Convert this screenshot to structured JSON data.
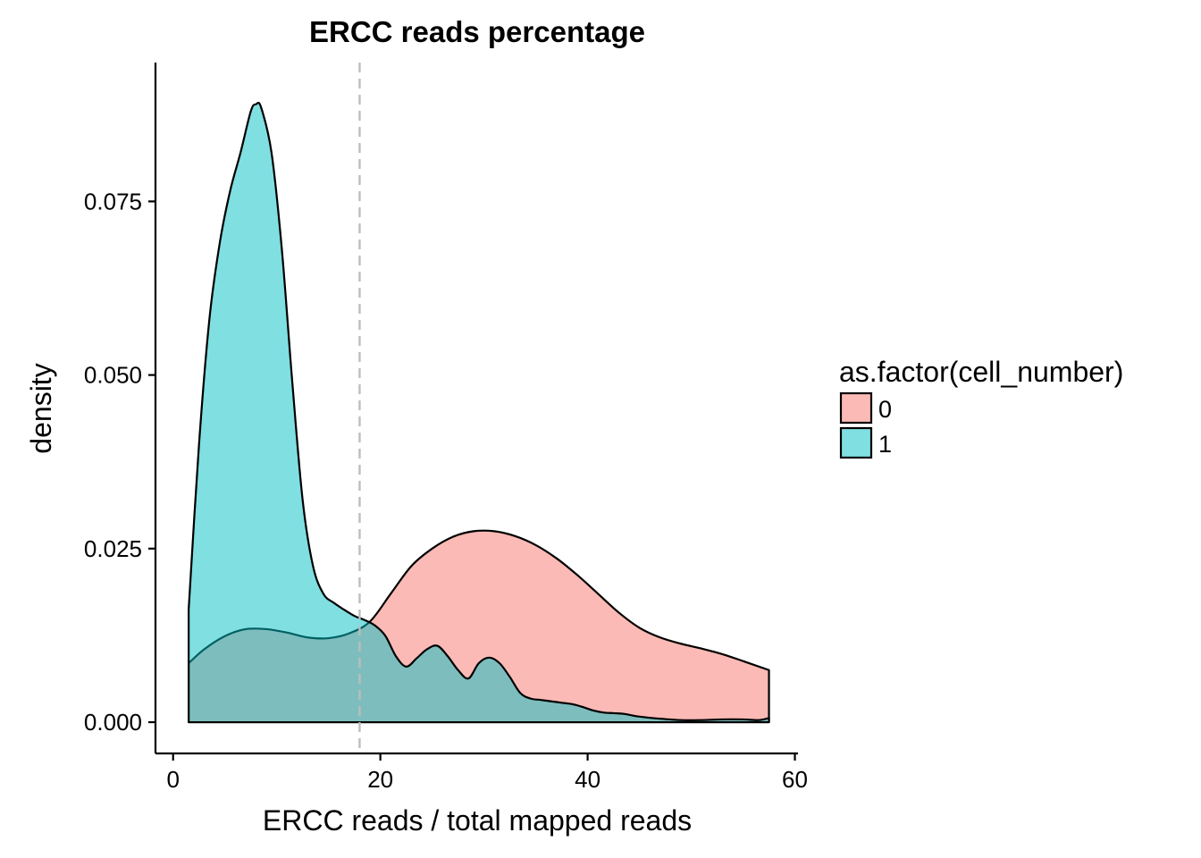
{
  "chart_data": {
    "type": "area",
    "subtype": "density",
    "title": "ERCC reads percentage",
    "xlabel": "ERCC reads / total mapped reads",
    "ylabel": "density",
    "xlim": [
      -1.7,
      60.3
    ],
    "ylim": [
      -0.0045,
      0.095
    ],
    "x_ticks": [
      0,
      20,
      40,
      60
    ],
    "y_ticks": [
      0.0,
      0.025,
      0.05,
      0.075
    ],
    "x_tick_labels": [
      "0",
      "20",
      "40",
      "60"
    ],
    "y_tick_labels": [
      "0.000",
      "0.025",
      "0.050",
      "0.075"
    ],
    "grid": false,
    "vline": {
      "x": 18,
      "style": "dashed",
      "color": "#bdbdbd"
    },
    "legend": {
      "title": "as.factor(cell_number)",
      "position": "right",
      "entries": [
        "0",
        "1"
      ]
    },
    "series": [
      {
        "name": "0",
        "color": "#F8766D",
        "x": [
          1.5,
          3,
          5,
          7,
          9,
          11,
          13,
          15,
          17,
          19,
          21,
          23,
          25,
          27,
          29,
          31,
          33,
          35,
          37,
          39,
          41,
          43,
          45,
          47,
          49,
          51,
          53,
          55,
          57.5
        ],
        "values": [
          0.0085,
          0.0105,
          0.0124,
          0.0134,
          0.0134,
          0.0129,
          0.0122,
          0.0121,
          0.0128,
          0.0145,
          0.0185,
          0.0225,
          0.025,
          0.0267,
          0.0275,
          0.0275,
          0.0268,
          0.0255,
          0.0236,
          0.0212,
          0.0185,
          0.0158,
          0.0136,
          0.0122,
          0.0113,
          0.0106,
          0.0098,
          0.0088,
          0.0075
        ]
      },
      {
        "name": "1",
        "color": "#00BFC4",
        "x": [
          1.5,
          2.5,
          3.5,
          4.5,
          5.5,
          6.5,
          7.5,
          8,
          8.5,
          9.5,
          10.5,
          11.5,
          12.5,
          13.5,
          14.5,
          15.5,
          16.5,
          17.5,
          18.5,
          19.5,
          20.5,
          21.5,
          22.5,
          23.5,
          24.5,
          25.5,
          26.5,
          27.5,
          28.5,
          29.5,
          30.5,
          31.5,
          32.5,
          33.5,
          34.5,
          35.5,
          36.5,
          37.5,
          38.5,
          39.5,
          40.5,
          41.5,
          42.5,
          43.5,
          45,
          47,
          49,
          51,
          53,
          55,
          56.5,
          57.5
        ],
        "values": [
          0.0162,
          0.04,
          0.058,
          0.069,
          0.0765,
          0.082,
          0.088,
          0.089,
          0.0885,
          0.082,
          0.068,
          0.049,
          0.032,
          0.0225,
          0.0185,
          0.0172,
          0.0162,
          0.0153,
          0.0147,
          0.0139,
          0.0124,
          0.0095,
          0.008,
          0.0092,
          0.0105,
          0.011,
          0.0095,
          0.0075,
          0.0063,
          0.0085,
          0.0093,
          0.0085,
          0.0065,
          0.0042,
          0.0034,
          0.0032,
          0.003,
          0.0028,
          0.0026,
          0.0022,
          0.0017,
          0.0014,
          0.0013,
          0.0012,
          0.0008,
          0.0005,
          0.0003,
          0.0003,
          0.0004,
          0.0004,
          0.0003,
          0.0006
        ]
      }
    ]
  }
}
